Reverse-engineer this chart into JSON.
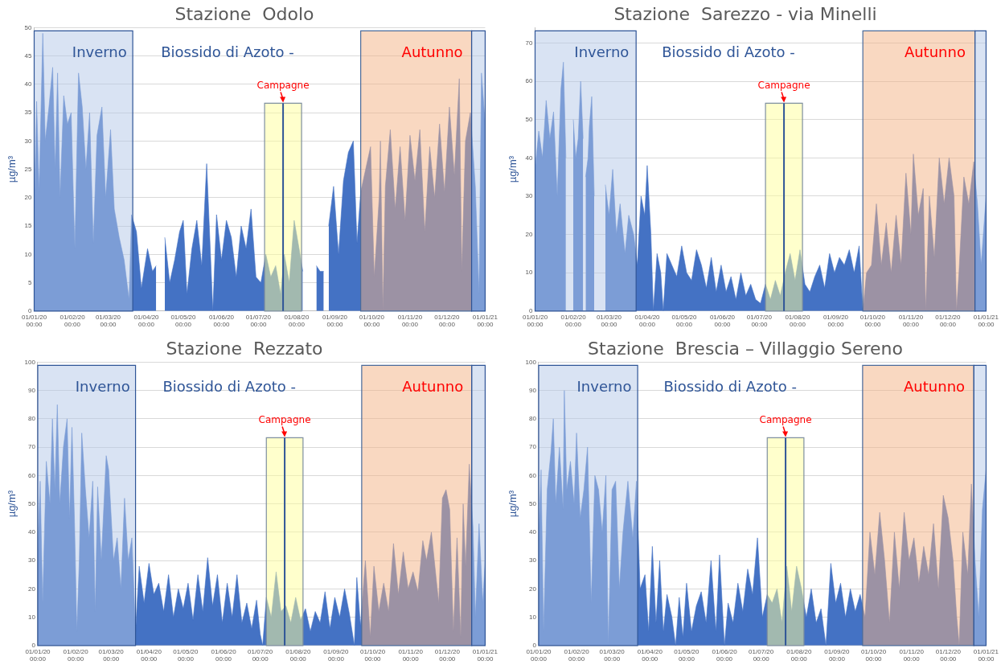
{
  "chart_data": [
    {
      "type": "area",
      "title": "Stazione  Odolo",
      "subtitle": "Biossido di Azoto -",
      "ylabel": "µg/m³",
      "grid": "y",
      "xlim": [
        "2020-01-01",
        "2021-01-01"
      ],
      "xticks": [
        {
          "value": "2020-01-01",
          "label": "01/01/20 00:00"
        },
        {
          "value": "2020-02-01",
          "label": "01/02/20 00:00"
        },
        {
          "value": "2020-03-01",
          "label": "01/03/20 00:00"
        },
        {
          "value": "2020-04-01",
          "label": "01/04/20 00:00"
        },
        {
          "value": "2020-05-01",
          "label": "01/05/20 00:00"
        },
        {
          "value": "2020-06-01",
          "label": "01/06/20 00:00"
        },
        {
          "value": "2020-07-01",
          "label": "01/07/20 00:00"
        },
        {
          "value": "2020-08-01",
          "label": "01/08/20 00:00"
        },
        {
          "value": "2020-09-01",
          "label": "01/09/20 00:00"
        },
        {
          "value": "2020-10-01",
          "label": "01/10/20 00:00"
        },
        {
          "value": "2020-11-01",
          "label": "01/11/20 00:00"
        },
        {
          "value": "2020-12-01",
          "label": "01/12/20 00:00"
        },
        {
          "value": "2021-01-01",
          "label": "01/01/21 00:00"
        }
      ],
      "ylim": [
        0,
        50
      ],
      "yticks": [
        0,
        5,
        10,
        15,
        20,
        25,
        30,
        35,
        40,
        45,
        50
      ],
      "x": [
        "2020-01-01",
        "2020-01-03",
        "2020-01-05",
        "2020-01-08",
        "2020-01-10",
        "2020-01-13",
        "2020-01-16",
        "2020-01-18",
        "2020-01-20",
        "2020-01-22",
        "2020-01-25",
        "2020-01-28",
        "2020-01-31",
        "2020-02-03",
        "2020-02-06",
        "2020-02-09",
        "2020-02-12",
        "2020-02-15",
        "2020-02-18",
        "2020-02-21",
        "2020-02-25",
        "2020-02-28",
        "2020-03-03",
        "2020-03-06",
        "2020-03-10",
        "2020-03-14",
        "2020-03-18",
        "2020-03-20",
        "2020-03-24",
        "2020-03-28",
        "2020-04-02",
        "2020-04-06",
        "2020-04-09",
        "2020-04-11",
        "2020-04-14",
        "2020-04-16",
        "2020-04-20",
        "2020-04-24",
        "2020-04-28",
        "2020-05-01",
        "2020-05-04",
        "2020-05-08",
        "2020-05-12",
        "2020-05-16",
        "2020-05-20",
        "2020-05-25",
        "2020-05-28",
        "2020-06-01",
        "2020-06-05",
        "2020-06-09",
        "2020-06-13",
        "2020-06-17",
        "2020-06-21",
        "2020-06-25",
        "2020-06-29",
        "2020-07-03",
        "2020-07-07",
        "2020-07-11",
        "2020-07-15",
        "2020-07-19",
        "2020-07-22",
        "2020-07-26",
        "2020-07-30",
        "2020-08-03",
        "2020-08-06",
        "2020-08-08",
        "2020-08-17",
        "2020-08-20",
        "2020-08-23",
        "2020-08-25",
        "2020-08-27",
        "2020-08-31",
        "2020-09-04",
        "2020-09-08",
        "2020-09-12",
        "2020-09-16",
        "2020-09-19",
        "2020-09-22",
        "2020-09-26",
        "2020-09-30",
        "2020-10-03",
        "2020-10-07",
        "2020-10-08",
        "2020-10-10",
        "2020-10-12",
        "2020-10-16",
        "2020-10-20",
        "2020-10-24",
        "2020-10-28",
        "2020-11-01",
        "2020-11-05",
        "2020-11-09",
        "2020-11-13",
        "2020-11-17",
        "2020-11-21",
        "2020-11-25",
        "2020-11-29",
        "2020-12-03",
        "2020-12-07",
        "2020-12-11",
        "2020-12-13",
        "2020-12-16",
        "2020-12-20",
        "2020-12-24",
        "2020-12-27",
        "2020-12-29",
        "2021-01-01"
      ],
      "series": [
        {
          "color": "#4472c4",
          "values": [
            18,
            37,
            21,
            49,
            30,
            36,
            43,
            25,
            42,
            20,
            38,
            33,
            35,
            11,
            42,
            36,
            25,
            35,
            12,
            31,
            36,
            20,
            32,
            18,
            13,
            9,
            2,
            17,
            14,
            4,
            11,
            7,
            8,
            null,
            null,
            13,
            5,
            9,
            14,
            16,
            3,
            11,
            16,
            8,
            26,
            0,
            17,
            9,
            16,
            13,
            6,
            15,
            11,
            18,
            6,
            5,
            10,
            6,
            8,
            3,
            10,
            5,
            16,
            11,
            7,
            null,
            8,
            7,
            7,
            null,
            15,
            22,
            10,
            23,
            28,
            30,
            12,
            21,
            25,
            29,
            6,
            20,
            30,
            0,
            22,
            32,
            18,
            29,
            16,
            31,
            23,
            32,
            14,
            29,
            20,
            33,
            21,
            36,
            24,
            41,
            7,
            30,
            35,
            22,
            3,
            42,
            33
          ]
        }
      ],
      "bands": [
        {
          "axis": "x",
          "from": "2020-01-01",
          "to": "2020-03-21",
          "label": "Inverno",
          "color": "#b4c7e7"
        },
        {
          "axis": "x",
          "from": "2020-09-22",
          "to": "2020-12-21",
          "label": "Autunno",
          "color": "#f4b183"
        },
        {
          "axis": "x",
          "from": "2020-12-21",
          "to": "2021-01-01",
          "color": "#b4c7e7"
        },
        {
          "axis": "x",
          "from": "2020-07-06",
          "to": "2020-08-05",
          "label": "Campagne",
          "color": "#ffff99"
        }
      ],
      "ref_lines": [
        {
          "axis": "x",
          "value": "2020-07-21",
          "color": "#2f5597"
        }
      ]
    },
    {
      "type": "area",
      "title": "Stazione  Sarezzo - via Minelli",
      "subtitle": "Biossido di Azoto -",
      "ylabel": "µg/m³",
      "grid": "y",
      "xlim": [
        "2020-01-01",
        "2021-01-01"
      ],
      "xticks": [
        {
          "value": "2020-01-01",
          "label": "01/01/20 00:00"
        },
        {
          "value": "2020-02-01",
          "label": "01/02/20 00:00"
        },
        {
          "value": "2020-03-01",
          "label": "01/03/20 00:00"
        },
        {
          "value": "2020-04-01",
          "label": "01/04/20 00:00"
        },
        {
          "value": "2020-05-01",
          "label": "01/05/20 00:00"
        },
        {
          "value": "2020-06-01",
          "label": "01/06/20 00:00"
        },
        {
          "value": "2020-07-01",
          "label": "01/07/20 00:00"
        },
        {
          "value": "2020-08-01",
          "label": "01/08/20 00:00"
        },
        {
          "value": "2020-09-01",
          "label": "01/09/20 00:00"
        },
        {
          "value": "2020-10-01",
          "label": "01/10/20 00:00"
        },
        {
          "value": "2020-11-01",
          "label": "01/11/20 00:00"
        },
        {
          "value": "2020-12-01",
          "label": "01/12/20 00:00"
        },
        {
          "value": "2021-01-01",
          "label": "01/01/21 00:00"
        }
      ],
      "ylim": [
        0,
        74
      ],
      "yticks": [
        0,
        10,
        20,
        30,
        40,
        50,
        60,
        70
      ],
      "x": [
        "2020-01-01",
        "2020-01-04",
        "2020-01-07",
        "2020-01-10",
        "2020-01-13",
        "2020-01-16",
        "2020-01-19",
        "2020-01-22",
        "2020-01-24",
        "2020-01-26",
        "2020-01-28",
        "2020-01-31",
        "2020-02-01",
        "2020-02-03",
        "2020-02-05",
        "2020-02-07",
        "2020-02-09",
        "2020-02-10",
        "2020-02-11",
        "2020-02-13",
        "2020-02-14",
        "2020-02-16",
        "2020-02-18",
        "2020-02-26",
        "2020-02-27",
        "2020-03-01",
        "2020-03-04",
        "2020-03-07",
        "2020-03-10",
        "2020-03-14",
        "2020-03-17",
        "2020-03-21",
        "2020-03-24",
        "2020-03-27",
        "2020-03-30",
        "2020-04-01",
        "2020-04-04",
        "2020-04-06",
        "2020-04-09",
        "2020-04-12",
        "2020-04-14",
        "2020-04-17",
        "2020-04-21",
        "2020-04-25",
        "2020-04-29",
        "2020-05-03",
        "2020-05-07",
        "2020-05-11",
        "2020-05-15",
        "2020-05-19",
        "2020-05-23",
        "2020-05-27",
        "2020-05-31",
        "2020-06-04",
        "2020-06-08",
        "2020-06-12",
        "2020-06-16",
        "2020-06-20",
        "2020-06-24",
        "2020-06-28",
        "2020-07-02",
        "2020-07-06",
        "2020-07-10",
        "2020-07-14",
        "2020-07-18",
        "2020-07-22",
        "2020-07-26",
        "2020-07-30",
        "2020-08-03",
        "2020-08-07",
        "2020-08-11",
        "2020-08-15",
        "2020-08-19",
        "2020-08-23",
        "2020-08-27",
        "2020-08-31",
        "2020-09-04",
        "2020-09-08",
        "2020-09-12",
        "2020-09-16",
        "2020-09-20",
        "2020-09-23",
        "2020-09-26",
        "2020-09-30",
        "2020-10-04",
        "2020-10-08",
        "2020-10-12",
        "2020-10-16",
        "2020-10-20",
        "2020-10-24",
        "2020-10-28",
        "2020-11-01",
        "2020-11-03",
        "2020-11-07",
        "2020-11-11",
        "2020-11-13",
        "2020-11-16",
        "2020-11-20",
        "2020-11-24",
        "2020-11-28",
        "2020-12-02",
        "2020-12-06",
        "2020-12-08",
        "2020-12-10",
        "2020-12-14",
        "2020-12-18",
        "2020-12-22",
        "2020-12-25",
        "2020-12-28",
        "2021-01-01"
      ],
      "series": [
        {
          "color": "#4472c4",
          "values": [
            37,
            47,
            40,
            55,
            45,
            52,
            30,
            58,
            65,
            40,
            null,
            null,
            50,
            40,
            45,
            60,
            45,
            null,
            35,
            40,
            48,
            56,
            30,
            null,
            33,
            25,
            37,
            20,
            28,
            15,
            25,
            20,
            12,
            30,
            25,
            38,
            20,
            0,
            15,
            10,
            0,
            15,
            12,
            9,
            17,
            10,
            8,
            16,
            12,
            6,
            14,
            5,
            12,
            5,
            9,
            3,
            10,
            4,
            7,
            3,
            2,
            7,
            3,
            8,
            4,
            10,
            15,
            8,
            16,
            7,
            5,
            9,
            12,
            6,
            15,
            10,
            14,
            12,
            16,
            10,
            17,
            0,
            10,
            12,
            28,
            12,
            23,
            10,
            25,
            12,
            36,
            20,
            41,
            25,
            32,
            0,
            30,
            14,
            40,
            28,
            40,
            30,
            0,
            10,
            35,
            28,
            39,
            28,
            12,
            30
          ]
        }
      ],
      "bands": [
        {
          "axis": "x",
          "from": "2020-01-01",
          "to": "2020-03-23",
          "label": "Inverno",
          "color": "#b4c7e7"
        },
        {
          "axis": "x",
          "from": "2020-09-23",
          "to": "2020-12-23",
          "label": "Autunno",
          "color": "#f4b183"
        },
        {
          "axis": "x",
          "from": "2020-12-23",
          "to": "2021-01-01",
          "color": "#b4c7e7"
        },
        {
          "axis": "x",
          "from": "2020-07-06",
          "to": "2020-08-05",
          "label": "Campagne",
          "color": "#ffff99"
        }
      ],
      "ref_lines": [
        {
          "axis": "x",
          "value": "2020-07-21",
          "color": "#2f5597"
        }
      ]
    },
    {
      "type": "area",
      "title": "Stazione  Rezzato",
      "subtitle": "Biossido di Azoto -",
      "ylabel": "µg/m³",
      "grid": "y",
      "xlim": [
        "2020-01-01",
        "2021-01-01"
      ],
      "xticks": [
        {
          "value": "2020-01-01",
          "label": "01/01/20 00:00"
        },
        {
          "value": "2020-02-01",
          "label": "01/02/20 00:00"
        },
        {
          "value": "2020-03-01",
          "label": "01/03/20 00:00"
        },
        {
          "value": "2020-04-01",
          "label": "01/04/20 00:00"
        },
        {
          "value": "2020-05-01",
          "label": "01/05/20 00:00"
        },
        {
          "value": "2020-06-01",
          "label": "01/06/20 00:00"
        },
        {
          "value": "2020-07-01",
          "label": "01/07/20 00:00"
        },
        {
          "value": "2020-08-01",
          "label": "01/08/20 00:00"
        },
        {
          "value": "2020-09-01",
          "label": "01/09/20 00:00"
        },
        {
          "value": "2020-10-01",
          "label": "01/10/20 00:00"
        },
        {
          "value": "2020-11-01",
          "label": "01/11/20 00:00"
        },
        {
          "value": "2020-12-01",
          "label": "01/12/20 00:00"
        },
        {
          "value": "2021-01-01",
          "label": "01/01/21 00:00"
        }
      ],
      "ylim": [
        0,
        100
      ],
      "yticks": [
        0,
        10,
        20,
        30,
        40,
        50,
        60,
        70,
        80,
        90,
        100
      ],
      "x": [
        "2020-01-01",
        "2020-01-03",
        "2020-01-05",
        "2020-01-08",
        "2020-01-11",
        "2020-01-13",
        "2020-01-15",
        "2020-01-17",
        "2020-01-19",
        "2020-01-22",
        "2020-01-25",
        "2020-01-27",
        "2020-01-29",
        "2020-01-31",
        "2020-02-02",
        "2020-02-04",
        "2020-02-06",
        "2020-02-09",
        "2020-02-12",
        "2020-02-15",
        "2020-02-17",
        "2020-02-19",
        "2020-02-22",
        "2020-02-26",
        "2020-02-28",
        "2020-03-03",
        "2020-03-06",
        "2020-03-09",
        "2020-03-12",
        "2020-03-15",
        "2020-03-18",
        "2020-03-21",
        "2020-03-24",
        "2020-03-28",
        "2020-04-01",
        "2020-04-05",
        "2020-04-09",
        "2020-04-13",
        "2020-04-17",
        "2020-04-21",
        "2020-04-25",
        "2020-04-29",
        "2020-05-03",
        "2020-05-07",
        "2020-05-11",
        "2020-05-15",
        "2020-05-19",
        "2020-05-23",
        "2020-05-27",
        "2020-05-31",
        "2020-06-04",
        "2020-06-08",
        "2020-06-12",
        "2020-06-16",
        "2020-06-20",
        "2020-06-24",
        "2020-06-28",
        "2020-07-01",
        "2020-07-03",
        "2020-07-06",
        "2020-07-10",
        "2020-07-14",
        "2020-07-18",
        "2020-07-22",
        "2020-07-26",
        "2020-07-30",
        "2020-08-03",
        "2020-08-07",
        "2020-08-11",
        "2020-08-15",
        "2020-08-19",
        "2020-08-23",
        "2020-08-27",
        "2020-08-31",
        "2020-09-04",
        "2020-09-08",
        "2020-09-12",
        "2020-09-16",
        "2020-09-18",
        "2020-09-21",
        "2020-09-25",
        "2020-09-29",
        "2020-10-02",
        "2020-10-06",
        "2020-10-10",
        "2020-10-14",
        "2020-10-18",
        "2020-10-22",
        "2020-10-26",
        "2020-10-30",
        "2020-11-03",
        "2020-11-07",
        "2020-11-11",
        "2020-11-14",
        "2020-11-18",
        "2020-11-24",
        "2020-11-27",
        "2020-11-30",
        "2020-12-03",
        "2020-12-06",
        "2020-12-09",
        "2020-12-12",
        "2020-12-14",
        "2020-12-16",
        "2020-12-19",
        "2020-12-22",
        "2020-12-24",
        "2020-12-27",
        "2020-12-30",
        "2021-01-01"
      ],
      "series": [
        {
          "color": "#4472c4",
          "values": [
            33,
            58,
            15,
            65,
            50,
            80,
            55,
            85,
            50,
            70,
            80,
            45,
            77,
            45,
            5,
            30,
            75,
            55,
            38,
            58,
            12,
            56,
            30,
            67,
            62,
            30,
            38,
            20,
            52,
            30,
            38,
            5,
            28,
            15,
            29,
            18,
            22,
            12,
            25,
            10,
            20,
            13,
            22,
            9,
            25,
            12,
            31,
            14,
            25,
            8,
            22,
            10,
            25,
            8,
            15,
            6,
            16,
            4,
            0,
            17,
            10,
            26,
            12,
            14,
            8,
            17,
            9,
            13,
            5,
            12,
            8,
            19,
            6,
            17,
            10,
            20,
            11,
            0,
            24,
            7,
            30,
            3,
            28,
            12,
            22,
            12,
            36,
            18,
            33,
            20,
            26,
            19,
            37,
            30,
            40,
            15,
            52,
            55,
            48,
            5,
            38,
            3,
            50,
            28,
            64,
            42,
            10,
            43,
            15,
            30
          ]
        }
      ],
      "bands": [
        {
          "axis": "x",
          "from": "2020-01-01",
          "to": "2020-03-21",
          "label": "Inverno",
          "color": "#b4c7e7"
        },
        {
          "axis": "x",
          "from": "2020-09-22",
          "to": "2020-12-21",
          "label": "Autunno",
          "color": "#f4b183"
        },
        {
          "axis": "x",
          "from": "2020-12-21",
          "to": "2021-01-01",
          "color": "#b4c7e7"
        },
        {
          "axis": "x",
          "from": "2020-07-06",
          "to": "2020-08-05",
          "label": "Campagne",
          "color": "#ffff99"
        }
      ],
      "ref_lines": [
        {
          "axis": "x",
          "value": "2020-07-21",
          "color": "#2f5597"
        }
      ]
    },
    {
      "type": "area",
      "title": "Stazione  Brescia – Villaggio Sereno",
      "subtitle": "Biossido di Azoto -",
      "ylabel": "µg/m³",
      "grid": "y",
      "xlim": [
        "2020-01-01",
        "2021-01-01"
      ],
      "xticks": [
        {
          "value": "2020-01-01",
          "label": "01/01/20 00:00"
        },
        {
          "value": "2020-02-01",
          "label": "01/02/20 00:00"
        },
        {
          "value": "2020-03-01",
          "label": "01/03/20 00:00"
        },
        {
          "value": "2020-04-01",
          "label": "01/04/20 00:00"
        },
        {
          "value": "2020-05-01",
          "label": "01/05/20 00:00"
        },
        {
          "value": "2020-06-01",
          "label": "01/06/20 00:00"
        },
        {
          "value": "2020-07-01",
          "label": "01/07/20 00:00"
        },
        {
          "value": "2020-08-01",
          "label": "01/08/20 00:00"
        },
        {
          "value": "2020-09-01",
          "label": "01/09/20 00:00"
        },
        {
          "value": "2020-10-01",
          "label": "01/10/20 00:00"
        },
        {
          "value": "2020-11-01",
          "label": "01/11/20 00:00"
        },
        {
          "value": "2020-12-01",
          "label": "01/12/20 00:00"
        },
        {
          "value": "2021-01-01",
          "label": "01/01/21 00:00"
        }
      ],
      "ylim": [
        0,
        100
      ],
      "yticks": [
        0,
        10,
        20,
        30,
        40,
        50,
        60,
        70,
        80,
        90,
        100
      ],
      "x": [
        "2020-01-01",
        "2020-01-03",
        "2020-01-05",
        "2020-01-08",
        "2020-01-11",
        "2020-01-13",
        "2020-01-15",
        "2020-01-18",
        "2020-01-21",
        "2020-01-22",
        "2020-01-24",
        "2020-01-27",
        "2020-01-30",
        "2020-02-01",
        "2020-02-04",
        "2020-02-07",
        "2020-02-10",
        "2020-02-13",
        "2020-02-16",
        "2020-02-19",
        "2020-02-22",
        "2020-02-25",
        "2020-02-27",
        "2020-03-01",
        "2020-03-04",
        "2020-03-07",
        "2020-03-10",
        "2020-03-14",
        "2020-03-18",
        "2020-03-21",
        "2020-03-24",
        "2020-03-28",
        "2020-03-31",
        "2020-04-03",
        "2020-04-06",
        "2020-04-09",
        "2020-04-12",
        "2020-04-15",
        "2020-04-19",
        "2020-04-22",
        "2020-04-25",
        "2020-04-28",
        "2020-05-01",
        "2020-05-05",
        "2020-05-09",
        "2020-05-13",
        "2020-05-17",
        "2020-05-21",
        "2020-05-25",
        "2020-05-28",
        "2020-06-01",
        "2020-06-04",
        "2020-06-08",
        "2020-06-12",
        "2020-06-16",
        "2020-06-20",
        "2020-06-24",
        "2020-06-28",
        "2020-07-02",
        "2020-07-06",
        "2020-07-10",
        "2020-07-14",
        "2020-07-18",
        "2020-07-22",
        "2020-07-26",
        "2020-07-30",
        "2020-08-03",
        "2020-08-07",
        "2020-08-11",
        "2020-08-15",
        "2020-08-19",
        "2020-08-23",
        "2020-08-27",
        "2020-08-31",
        "2020-09-04",
        "2020-09-08",
        "2020-09-12",
        "2020-09-16",
        "2020-09-20",
        "2020-09-24",
        "2020-09-28",
        "2020-10-02",
        "2020-10-06",
        "2020-10-10",
        "2020-10-14",
        "2020-10-18",
        "2020-10-22",
        "2020-10-26",
        "2020-10-30",
        "2020-11-03",
        "2020-11-07",
        "2020-11-11",
        "2020-11-15",
        "2020-11-19",
        "2020-11-23",
        "2020-11-27",
        "2020-12-01",
        "2020-12-05",
        "2020-12-08",
        "2020-12-10",
        "2020-12-13",
        "2020-12-17",
        "2020-12-20",
        "2020-12-23",
        "2020-12-26",
        "2020-12-29",
        "2021-01-01"
      ],
      "series": [
        {
          "color": "#4472c4",
          "values": [
            37,
            62,
            5,
            55,
            68,
            80,
            50,
            70,
            48,
            90,
            55,
            65,
            50,
            75,
            45,
            55,
            70,
            15,
            60,
            55,
            40,
            60,
            0,
            55,
            58,
            20,
            40,
            58,
            38,
            58,
            20,
            25,
            5,
            35,
            8,
            30,
            5,
            18,
            10,
            0,
            17,
            3,
            22,
            5,
            14,
            19,
            8,
            30,
            5,
            32,
            0,
            15,
            8,
            22,
            12,
            27,
            18,
            38,
            10,
            18,
            15,
            20,
            8,
            28,
            12,
            28,
            20,
            10,
            20,
            8,
            13,
            0,
            29,
            15,
            22,
            10,
            20,
            12,
            18,
            10,
            40,
            25,
            47,
            30,
            8,
            40,
            20,
            47,
            30,
            38,
            22,
            35,
            25,
            43,
            20,
            53,
            45,
            30,
            10,
            0,
            40,
            25,
            57,
            30,
            10,
            48,
            62
          ]
        }
      ],
      "bands": [
        {
          "axis": "x",
          "from": "2020-01-01",
          "to": "2020-03-22",
          "label": "Inverno",
          "color": "#b4c7e7"
        },
        {
          "axis": "x",
          "from": "2020-09-22",
          "to": "2020-12-22",
          "label": "Autunno",
          "color": "#f4b183"
        },
        {
          "axis": "x",
          "from": "2020-12-22",
          "to": "2021-01-01",
          "color": "#b4c7e7"
        },
        {
          "axis": "x",
          "from": "2020-07-06",
          "to": "2020-08-05",
          "label": "Campagne",
          "color": "#ffff99"
        }
      ],
      "ref_lines": [
        {
          "axis": "x",
          "value": "2020-07-21",
          "color": "#2f5597"
        }
      ]
    }
  ]
}
